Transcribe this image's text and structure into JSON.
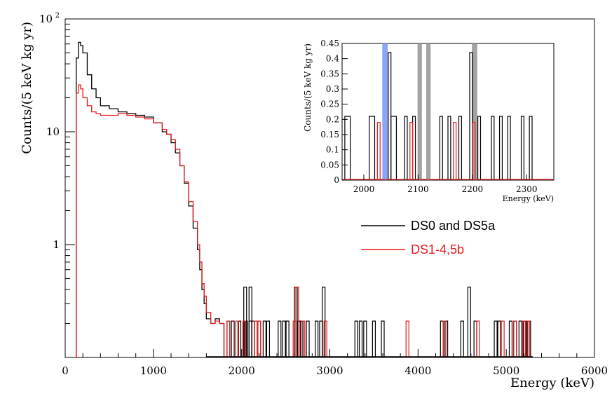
{
  "chart_data": [
    {
      "type": "line",
      "subtype": "histogram",
      "xlabel": "Energy (keV)",
      "ylabel": "Counts/(5 keV kg yr)",
      "xlim": [
        0,
        6000
      ],
      "ylim": [
        0.1,
        100
      ],
      "yscale": "log",
      "xticks": [
        "0",
        "1000",
        "2000",
        "3000",
        "4000",
        "5000",
        "6000"
      ],
      "yticks": [
        {
          "value": 1,
          "label": "1"
        },
        {
          "value": 10,
          "label": "10"
        },
        {
          "value": 100,
          "label": "10",
          "exponent": "2"
        }
      ],
      "legend": {
        "placement": "center-right",
        "entries": [
          {
            "label": "DS0 and DS5a",
            "color": "#000000"
          },
          {
            "label": "DS1-4,5b",
            "color": "#e41a1c"
          }
        ]
      },
      "series": [
        {
          "name": "DS0 and DS5a",
          "color": "#000000",
          "x": [
            100,
            125,
            150,
            175,
            200,
            250,
            300,
            350,
            400,
            500,
            600,
            700,
            800,
            900,
            1000,
            1100,
            1150,
            1200,
            1250,
            1300,
            1350,
            1400,
            1450,
            1500,
            1525,
            1550,
            1575,
            1600,
            1650,
            1700,
            1750,
            1800
          ],
          "y": [
            0.1,
            45,
            62,
            58,
            50,
            32,
            24,
            20,
            17,
            16,
            15,
            14.5,
            14,
            13.5,
            12,
            10,
            9.5,
            8,
            6.5,
            5,
            3.5,
            2.2,
            1.4,
            0.9,
            0.6,
            0.4,
            0.3,
            0.22,
            0.2,
            0.22,
            0.2,
            0.1
          ],
          "tail_spikes": [
            {
              "x": 1850,
              "y": 0.21
            },
            {
              "x": 1900,
              "y": 0.21
            },
            {
              "x": 1975,
              "y": 0.21
            },
            {
              "x": 2050,
              "y": 0.21
            },
            {
              "x": 2100,
              "y": 0.21
            },
            {
              "x": 2130,
              "y": 0.21
            },
            {
              "x": 2200,
              "y": 0.21
            },
            {
              "x": 2260,
              "y": 0.21
            },
            {
              "x": 2300,
              "y": 0.21
            },
            {
              "x": 2040,
              "y": 0.42
            },
            {
              "x": 2100,
              "y": 0.42
            },
            {
              "x": 2430,
              "y": 0.21
            },
            {
              "x": 2480,
              "y": 0.21
            },
            {
              "x": 2520,
              "y": 0.21
            },
            {
              "x": 2615,
              "y": 0.42
            },
            {
              "x": 2650,
              "y": 0.21
            },
            {
              "x": 2680,
              "y": 0.21
            },
            {
              "x": 2750,
              "y": 0.21
            },
            {
              "x": 2850,
              "y": 0.21
            },
            {
              "x": 2900,
              "y": 0.21
            },
            {
              "x": 2930,
              "y": 0.42
            },
            {
              "x": 3300,
              "y": 0.21
            },
            {
              "x": 3350,
              "y": 0.21
            },
            {
              "x": 3400,
              "y": 0.21
            },
            {
              "x": 3500,
              "y": 0.21
            },
            {
              "x": 3600,
              "y": 0.21
            },
            {
              "x": 4270,
              "y": 0.21
            },
            {
              "x": 4320,
              "y": 0.21
            },
            {
              "x": 4500,
              "y": 0.21
            },
            {
              "x": 4580,
              "y": 0.42
            },
            {
              "x": 4650,
              "y": 0.21
            },
            {
              "x": 4880,
              "y": 0.21
            },
            {
              "x": 4920,
              "y": 0.21
            },
            {
              "x": 5050,
              "y": 0.21
            },
            {
              "x": 5100,
              "y": 0.21
            },
            {
              "x": 5160,
              "y": 0.21
            },
            {
              "x": 5210,
              "y": 0.21
            },
            {
              "x": 5260,
              "y": 0.21
            }
          ]
        },
        {
          "name": "DS1-4,5b",
          "color": "#e41a1c",
          "x": [
            100,
            125,
            150,
            175,
            200,
            250,
            300,
            350,
            400,
            500,
            600,
            700,
            800,
            900,
            1000,
            1100,
            1150,
            1200,
            1250,
            1300,
            1350,
            1400,
            1450,
            1500,
            1525,
            1550,
            1575,
            1600,
            1650,
            1700,
            1750,
            1800
          ],
          "y": [
            0.1,
            22,
            26,
            24,
            20,
            17,
            15,
            14.5,
            14,
            14,
            14.5,
            14,
            13.5,
            13,
            12,
            10.5,
            9.5,
            8.5,
            7,
            5,
            3.6,
            2.4,
            1.6,
            1.0,
            0.7,
            0.45,
            0.35,
            0.25,
            0.2,
            0.21,
            0.2,
            0.1
          ],
          "tail_spikes": [
            {
              "x": 1850,
              "y": 0.21
            },
            {
              "x": 1950,
              "y": 0.21
            },
            {
              "x": 2030,
              "y": 0.21
            },
            {
              "x": 2160,
              "y": 0.21
            },
            {
              "x": 2200,
              "y": 0.21
            },
            {
              "x": 2600,
              "y": 0.21
            },
            {
              "x": 2630,
              "y": 0.42
            },
            {
              "x": 2700,
              "y": 0.21
            },
            {
              "x": 2950,
              "y": 0.21
            },
            {
              "x": 3880,
              "y": 0.21
            },
            {
              "x": 4300,
              "y": 0.21
            },
            {
              "x": 4680,
              "y": 0.21
            },
            {
              "x": 4960,
              "y": 0.21
            },
            {
              "x": 5100,
              "y": 0.21
            },
            {
              "x": 5200,
              "y": 0.21
            },
            {
              "x": 5250,
              "y": 0.21
            }
          ]
        }
      ]
    },
    {
      "type": "line",
      "subtype": "histogram",
      "name": "inset",
      "xlabel": "Energy (keV)",
      "ylabel": "Counts/(5 keV kg yr)",
      "xlim": [
        1960,
        2350
      ],
      "ylim": [
        0,
        0.45
      ],
      "xticks": [
        "2000",
        "2100",
        "2200",
        "2300"
      ],
      "yticks": [
        "0",
        "0.05",
        "0.1",
        "0.15",
        "0.2",
        "0.25",
        "0.3",
        "0.35",
        "0.4",
        "0.45"
      ],
      "bands": [
        {
          "x0": 2034,
          "x1": 2044,
          "color": "#7f9cf5"
        },
        {
          "x0": 2099,
          "x1": 2107,
          "color": "#999999"
        },
        {
          "x0": 2115,
          "x1": 2123,
          "color": "#999999"
        },
        {
          "x0": 2199,
          "x1": 2209,
          "color": "#999999"
        }
      ],
      "series": [
        {
          "name": "DS0 and DS5a",
          "color": "#000000",
          "bins": [
            {
              "x0": 1965,
              "x1": 1975,
              "y": 0.21
            },
            {
              "x0": 2010,
              "x1": 2020,
              "y": 0.21
            },
            {
              "x0": 2045,
              "x1": 2050,
              "y": 0.42
            },
            {
              "x0": 2050,
              "x1": 2060,
              "y": 0.21
            },
            {
              "x0": 2075,
              "x1": 2080,
              "y": 0.21
            },
            {
              "x0": 2090,
              "x1": 2095,
              "y": 0.21
            },
            {
              "x0": 2140,
              "x1": 2145,
              "y": 0.21
            },
            {
              "x0": 2155,
              "x1": 2160,
              "y": 0.21
            },
            {
              "x0": 2175,
              "x1": 2180,
              "y": 0.21
            },
            {
              "x0": 2195,
              "x1": 2200,
              "y": 0.42
            },
            {
              "x0": 2210,
              "x1": 2215,
              "y": 0.21
            },
            {
              "x0": 2235,
              "x1": 2240,
              "y": 0.21
            },
            {
              "x0": 2250,
              "x1": 2255,
              "y": 0.21
            },
            {
              "x0": 2265,
              "x1": 2270,
              "y": 0.21
            },
            {
              "x0": 2290,
              "x1": 2295,
              "y": 0.21
            },
            {
              "x0": 2305,
              "x1": 2310,
              "y": 0.21
            }
          ]
        },
        {
          "name": "DS1-4,5b",
          "color": "#e41a1c",
          "bins": [
            {
              "x0": 2025,
              "x1": 2030,
              "y": 0.19
            },
            {
              "x0": 2085,
              "x1": 2090,
              "y": 0.19
            },
            {
              "x0": 2165,
              "x1": 2170,
              "y": 0.19
            },
            {
              "x0": 2200,
              "x1": 2205,
              "y": 0.19
            }
          ]
        }
      ]
    }
  ]
}
